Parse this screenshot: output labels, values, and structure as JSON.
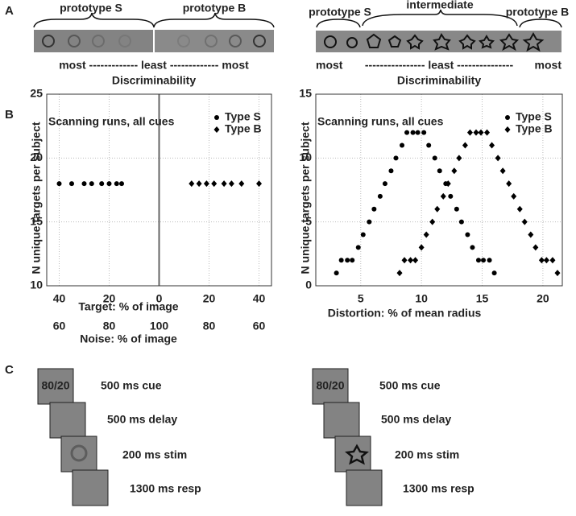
{
  "panel_labels": [
    "A",
    "B",
    "C"
  ],
  "panel_a": {
    "left": {
      "labels": [
        "prototype S",
        "prototype B"
      ],
      "scale": "most ------------- least ------------- most",
      "axis_label": "Discriminability"
    },
    "right": {
      "labels": [
        "prototype S",
        "intermediate",
        "prototype B"
      ],
      "scale": [
        "most",
        "---------------- least ---------------",
        "most"
      ],
      "axis_label": "Discriminability"
    }
  },
  "chart_data": [
    {
      "type": "scatter",
      "title": "Scanning runs, all cues",
      "xlabel": "Target: % of image",
      "x2label": "Noise: % of image",
      "ylabel": "N unique targets per subject",
      "xlim": [
        -45,
        45
      ],
      "ylim": [
        10,
        25
      ],
      "xticks": [
        {
          "value": -40,
          "label": "40"
        },
        {
          "value": -20,
          "label": "20"
        },
        0,
        20,
        40
      ],
      "x2ticks": [
        {
          "value": -40,
          "label": "60"
        },
        {
          "value": -20,
          "label": "80"
        },
        {
          "value": 0,
          "label": "100"
        },
        {
          "value": 20,
          "label": "80"
        },
        {
          "value": 40,
          "label": "60"
        }
      ],
      "yticks": [
        10,
        15,
        20,
        25
      ],
      "grid": true,
      "vline": 0,
      "legend": "upper right",
      "series": [
        {
          "name": "Type S",
          "marker": "circle",
          "color": "#000000",
          "x": [
            -40,
            -35,
            -30,
            -27,
            -23,
            -20,
            -17,
            -15
          ],
          "values": [
            18,
            18,
            18,
            18,
            18,
            18,
            18,
            18
          ]
        },
        {
          "name": "Type B",
          "marker": "diamond",
          "color": "#000000",
          "x": [
            13,
            16,
            19,
            22,
            26,
            29,
            33,
            40
          ],
          "values": [
            18,
            18,
            18,
            18,
            18,
            18,
            18,
            18
          ]
        }
      ]
    },
    {
      "type": "scatter",
      "title": "Scanning runs, all cues",
      "xlabel": "Distortion: % of mean radius",
      "ylabel": "N unique targets per subject",
      "xlim": [
        1.3,
        21.6
      ],
      "ylim": [
        0,
        15
      ],
      "xticks": [
        5,
        10,
        15,
        20
      ],
      "yticks": [
        0,
        5,
        10,
        15
      ],
      "grid": true,
      "legend": "upper right",
      "series": [
        {
          "name": "Type S",
          "marker": "circle",
          "color": "#000000",
          "x": [
            3,
            3.4,
            3.9,
            4.3,
            4.8,
            5.2,
            5.7,
            6.1,
            6.6,
            7,
            7.5,
            7.9,
            8.4,
            8.8,
            9.3,
            9.7,
            10.2,
            10.6,
            11.1,
            11.5,
            12,
            12.4,
            12.9,
            13.3,
            13.8,
            14.2,
            14.7,
            15.1,
            15.6,
            16
          ],
          "values": [
            1,
            2,
            2,
            2,
            3,
            4,
            5,
            6,
            7,
            8,
            9,
            10,
            11,
            12,
            12,
            12,
            12,
            11,
            10,
            9,
            8,
            7,
            6,
            5,
            4,
            3,
            2,
            2,
            2,
            1
          ]
        },
        {
          "name": "Type B",
          "marker": "diamond",
          "color": "#000000",
          "x": [
            8.2,
            8.6,
            9.1,
            9.5,
            10,
            10.4,
            10.9,
            11.3,
            11.8,
            12.2,
            12.7,
            13.1,
            13.6,
            14,
            14.5,
            14.9,
            15.4,
            15.8,
            16.3,
            16.7,
            17.2,
            17.6,
            18.1,
            18.5,
            19,
            19.4,
            19.9,
            20.3,
            20.8,
            21.2
          ],
          "values": [
            1,
            2,
            2,
            2,
            3,
            4,
            5,
            6,
            7,
            8,
            9,
            10,
            11,
            12,
            12,
            12,
            12,
            11,
            10,
            9,
            8,
            7,
            6,
            5,
            4,
            3,
            2,
            2,
            2,
            1
          ]
        }
      ]
    }
  ],
  "panel_c": {
    "sequences": [
      {
        "cue_text": "80/20",
        "steps": [
          "500 ms cue",
          "500 ms delay",
          "200 ms stim",
          "1300 ms resp"
        ]
      },
      {
        "cue_text": "80/20",
        "steps": [
          "500 ms cue",
          "500 ms delay",
          "200 ms stim",
          "1300 ms resp"
        ]
      }
    ]
  }
}
